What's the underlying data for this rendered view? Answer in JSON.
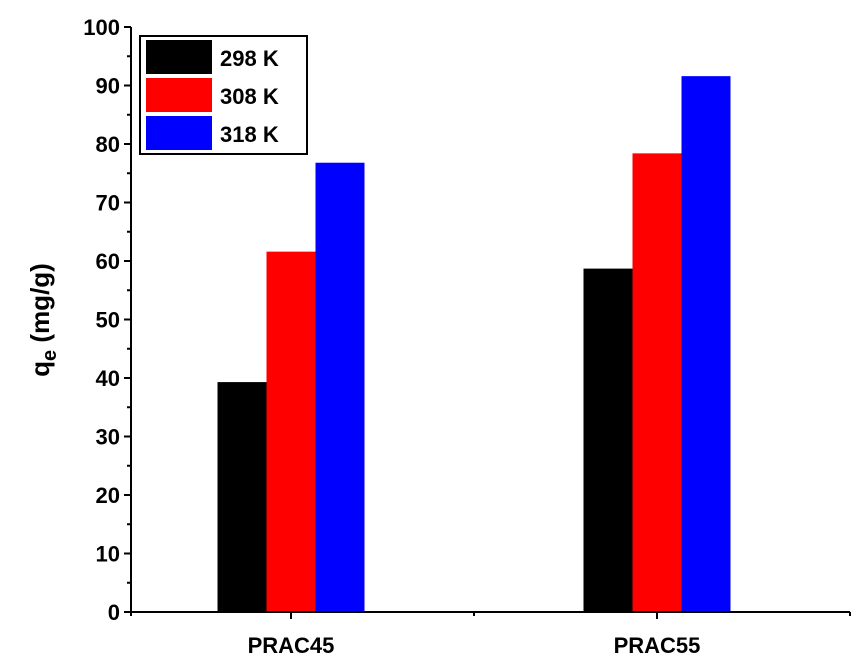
{
  "chart_data": {
    "type": "bar",
    "categories": [
      "PRAC45",
      "PRAC55"
    ],
    "series": [
      {
        "name": "298 K",
        "values": [
          39.3,
          58.7
        ],
        "color": "#000000"
      },
      {
        "name": "308 K",
        "values": [
          61.6,
          78.4
        ],
        "color": "#ff0000"
      },
      {
        "name": "318 K",
        "values": [
          76.8,
          91.6
        ],
        "color": "#0000ff"
      }
    ],
    "ylabel": "q",
    "ylabel_sub": "e",
    "ylabel_unit": " (mg/g)",
    "xlabel": "",
    "ylim": [
      0,
      100
    ],
    "yticks": [
      0,
      10,
      20,
      30,
      40,
      50,
      60,
      70,
      80,
      90,
      100
    ],
    "legend_position": "top-left",
    "grid": false
  }
}
